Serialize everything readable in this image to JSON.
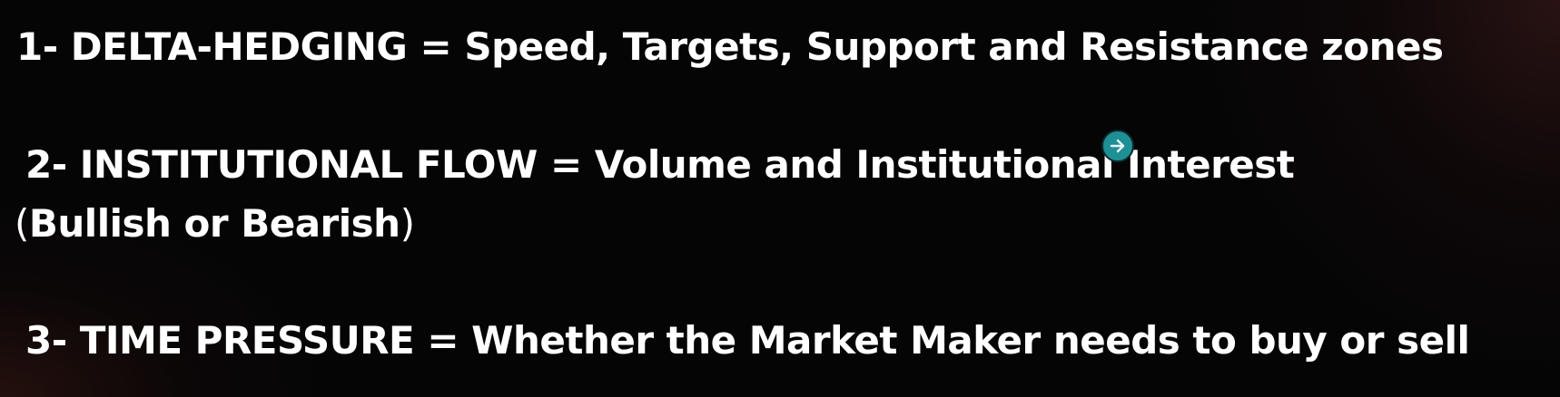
{
  "slide": {
    "line1": "1- DELTA-HEDGING = Speed, Targets, Support and Resistance zones",
    "line2a": "2- INSTITUTIONAL FLOW = Volume and Institutional Interest",
    "line2b_open_paren": "(",
    "line2b_text": "Bullish or Bearish",
    "line2b_close_paren": ")",
    "line3": "3- TIME PRESSURE = Whether the Market Maker needs to buy or sell"
  },
  "colors": {
    "background": "#050506",
    "text": "#ffffff",
    "cursor_icon": "#1f8f96"
  },
  "icons": {
    "pointer": "arrow-right-circle-icon"
  }
}
